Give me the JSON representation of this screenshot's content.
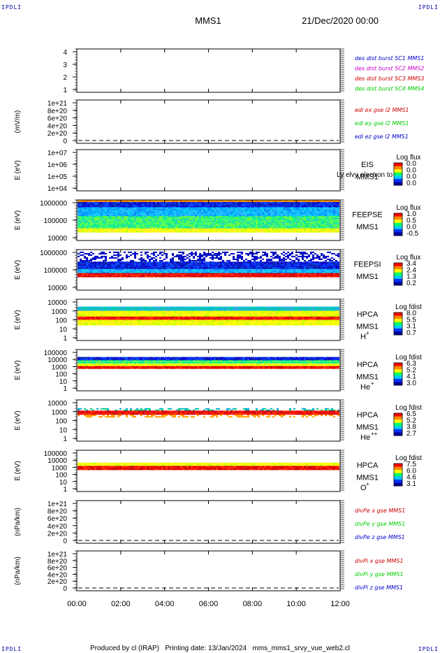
{
  "corner_marks": [
    "IPDLI",
    "IPDLI",
    "IPDLI",
    "IPDLI"
  ],
  "header": {
    "spacecraft": "MMS1",
    "datetime": "21/Dec/2020 00:00"
  },
  "footer": {
    "text": "Produced by cl (IRAP)   Printing date: 13/Jan/2024   mms_mms1_srvy_vue_web2.cl"
  },
  "colors": {
    "blue": "#0000cc",
    "magenta": "#cc00cc",
    "red": "#cc0000",
    "green": "#00cc00",
    "axis": "#000000"
  },
  "x_axis": {
    "ticks": [
      "00:00",
      "02:00",
      "04:00",
      "06:00",
      "08:00",
      "10:00",
      "12:00"
    ],
    "range_hours": [
      0,
      12
    ]
  },
  "chart_data": [
    {
      "type": "line",
      "id": "dist",
      "ylabel": "",
      "yticks": [
        "4",
        "3",
        "2",
        "1"
      ],
      "legend": [
        {
          "text": "des dist burst SC1 MMS1",
          "color": "#0000cc"
        },
        {
          "text": "des dist burst SC2 MMS2",
          "color": "#cc00cc"
        },
        {
          "text": "des dist burst SC3 MMS3",
          "color": "#cc0000"
        },
        {
          "text": "des dist burst SC4 MMS4",
          "color": "#00cc00"
        }
      ],
      "series": []
    },
    {
      "type": "line",
      "id": "edi",
      "ylabel": "(mV/m)",
      "yticks": [
        "1e+21",
        "8e+20",
        "6e+20",
        "4e+20",
        "2e+20",
        "0"
      ],
      "zero_line": true,
      "legend": [
        {
          "text": "edi ex gse l2 MMS1",
          "color": "#cc0000"
        },
        {
          "text": "edi ey gse l2 MMS1",
          "color": "#00cc00"
        },
        {
          "text": "edi ez gse l2 MMS1",
          "color": "#0000cc"
        }
      ],
      "series": []
    },
    {
      "type": "heatmap",
      "id": "eis",
      "ylabel": "E (eV)",
      "yticks": [
        "1e+07",
        "1e+06",
        "1e+05",
        "1e+04"
      ],
      "labels": [
        "EIS",
        "MMS1"
      ],
      "overlay_text": "Ly elvy electron to",
      "colorbar": {
        "title": "Log flux",
        "ticks": [
          "0.0",
          "0.0",
          "0.0",
          "0.0"
        ]
      },
      "bands": []
    },
    {
      "type": "heatmap",
      "id": "feepse",
      "ylabel": "E (eV)",
      "yticks": [
        "1000000",
        "100000",
        "10000"
      ],
      "labels": [
        "FEEPSE",
        "MMS1"
      ],
      "colorbar": {
        "title": "Log flux",
        "ticks": [
          "1.0",
          "0.5",
          "0.0",
          "-0.5"
        ]
      },
      "bands": [
        {
          "from": 0.0,
          "to": 0.05,
          "scheme": "orange"
        },
        {
          "from": 0.05,
          "to": 0.18,
          "scheme": "blue"
        },
        {
          "from": 0.18,
          "to": 0.4,
          "scheme": "cyan"
        },
        {
          "from": 0.4,
          "to": 0.7,
          "scheme": "green"
        },
        {
          "from": 0.7,
          "to": 0.8,
          "scheme": "yellow"
        }
      ]
    },
    {
      "type": "heatmap",
      "id": "feepsi",
      "ylabel": "E (eV)",
      "yticks": [
        "1000000",
        "100000",
        "10000"
      ],
      "labels": [
        "FEEPSI",
        "MMS1"
      ],
      "colorbar": {
        "title": "Log flux",
        "ticks": [
          "3.4",
          "2.4",
          "1.3",
          "0.2"
        ]
      },
      "bands": [
        {
          "from": 0.05,
          "to": 0.3,
          "scheme": "sparse_blue"
        },
        {
          "from": 0.3,
          "to": 0.48,
          "scheme": "blue"
        },
        {
          "from": 0.48,
          "to": 0.58,
          "scheme": "cyan"
        },
        {
          "from": 0.58,
          "to": 0.65,
          "scheme": "red"
        }
      ]
    },
    {
      "type": "heatmap",
      "id": "hpca_h",
      "ylabel": "E (eV)",
      "yticks": [
        "10000",
        "1000",
        "100",
        "10",
        "1"
      ],
      "labels": [
        "HPCA",
        "MMS1"
      ],
      "species": "H",
      "species_sup": "+",
      "colorbar": {
        "title": "Log fdist",
        "ticks": [
          "8.0",
          "5.5",
          "3.1",
          "0.7"
        ]
      },
      "bands": [
        {
          "from": 0.18,
          "to": 0.28,
          "scheme": "teal"
        },
        {
          "from": 0.28,
          "to": 0.42,
          "scheme": "yellow"
        },
        {
          "from": 0.42,
          "to": 0.5,
          "scheme": "red"
        },
        {
          "from": 0.5,
          "to": 0.62,
          "scheme": "yellow"
        }
      ]
    },
    {
      "type": "heatmap",
      "id": "hpca_he",
      "ylabel": "E (eV)",
      "yticks": [
        "100000",
        "10000",
        "1000",
        "100",
        "10",
        "1"
      ],
      "labels": [
        "HPCA",
        "MMS1"
      ],
      "species": "He",
      "species_sup": "+",
      "colorbar": {
        "title": "Log fdist",
        "ticks": [
          "6.3",
          "5.2",
          "4.1",
          "3.0"
        ]
      },
      "bands": [
        {
          "from": 0.18,
          "to": 0.26,
          "scheme": "blue"
        },
        {
          "from": 0.26,
          "to": 0.34,
          "scheme": "green"
        },
        {
          "from": 0.34,
          "to": 0.4,
          "scheme": "yellow"
        },
        {
          "from": 0.4,
          "to": 0.45,
          "scheme": "red"
        }
      ]
    },
    {
      "type": "heatmap",
      "id": "hpca_hepp",
      "ylabel": "E (eV)",
      "yticks": [
        "10000",
        "1000",
        "100",
        "10",
        "1"
      ],
      "labels": [
        "HPCA",
        "MMS1"
      ],
      "species": "He",
      "species_sup": "++",
      "colorbar": {
        "title": "Log fdist",
        "ticks": [
          "6.5",
          "5.2",
          "3.8",
          "2.7"
        ]
      },
      "bands": [
        {
          "from": 0.2,
          "to": 0.26,
          "scheme": "sparse_teal"
        },
        {
          "from": 0.26,
          "to": 0.36,
          "scheme": "red"
        },
        {
          "from": 0.36,
          "to": 0.42,
          "scheme": "sparse_orange"
        }
      ]
    },
    {
      "type": "heatmap",
      "id": "hpca_o",
      "ylabel": "E (eV)",
      "yticks": [
        "100000",
        "10000",
        "1000",
        "100",
        "10",
        "1"
      ],
      "labels": [
        "HPCA",
        "MMS1"
      ],
      "species": "O",
      "species_sup": "+",
      "colorbar": {
        "title": "Log fdist",
        "ticks": [
          "7.5",
          "6.0",
          "4.6",
          "3.1"
        ]
      },
      "bands": [
        {
          "from": 0.3,
          "to": 0.38,
          "scheme": "yellow"
        },
        {
          "from": 0.38,
          "to": 0.45,
          "scheme": "red"
        }
      ]
    },
    {
      "type": "line",
      "id": "divpe",
      "ylabel": "(nPa/km)",
      "yticks": [
        "1e+21",
        "8e+20",
        "6e+20",
        "4e+20",
        "2e+20",
        "0"
      ],
      "zero_line": true,
      "legend": [
        {
          "text": "divPe x gse MMS1",
          "color": "#cc0000"
        },
        {
          "text": "divPe y gse MMS1",
          "color": "#00cc00"
        },
        {
          "text": "divPe z gse MMS1",
          "color": "#0000cc"
        }
      ],
      "series": []
    },
    {
      "type": "line",
      "id": "divpi",
      "ylabel": "(nPa/km)",
      "yticks": [
        "1e+21",
        "8e+20",
        "6e+20",
        "4e+20",
        "2e+20",
        "0"
      ],
      "zero_line": true,
      "legend": [
        {
          "text": "divPi x gse MMS1",
          "color": "#cc0000"
        },
        {
          "text": "divPi y gse MMS1",
          "color": "#00cc00"
        },
        {
          "text": "divPi z gse MMS1",
          "color": "#0000cc"
        }
      ],
      "series": []
    }
  ]
}
